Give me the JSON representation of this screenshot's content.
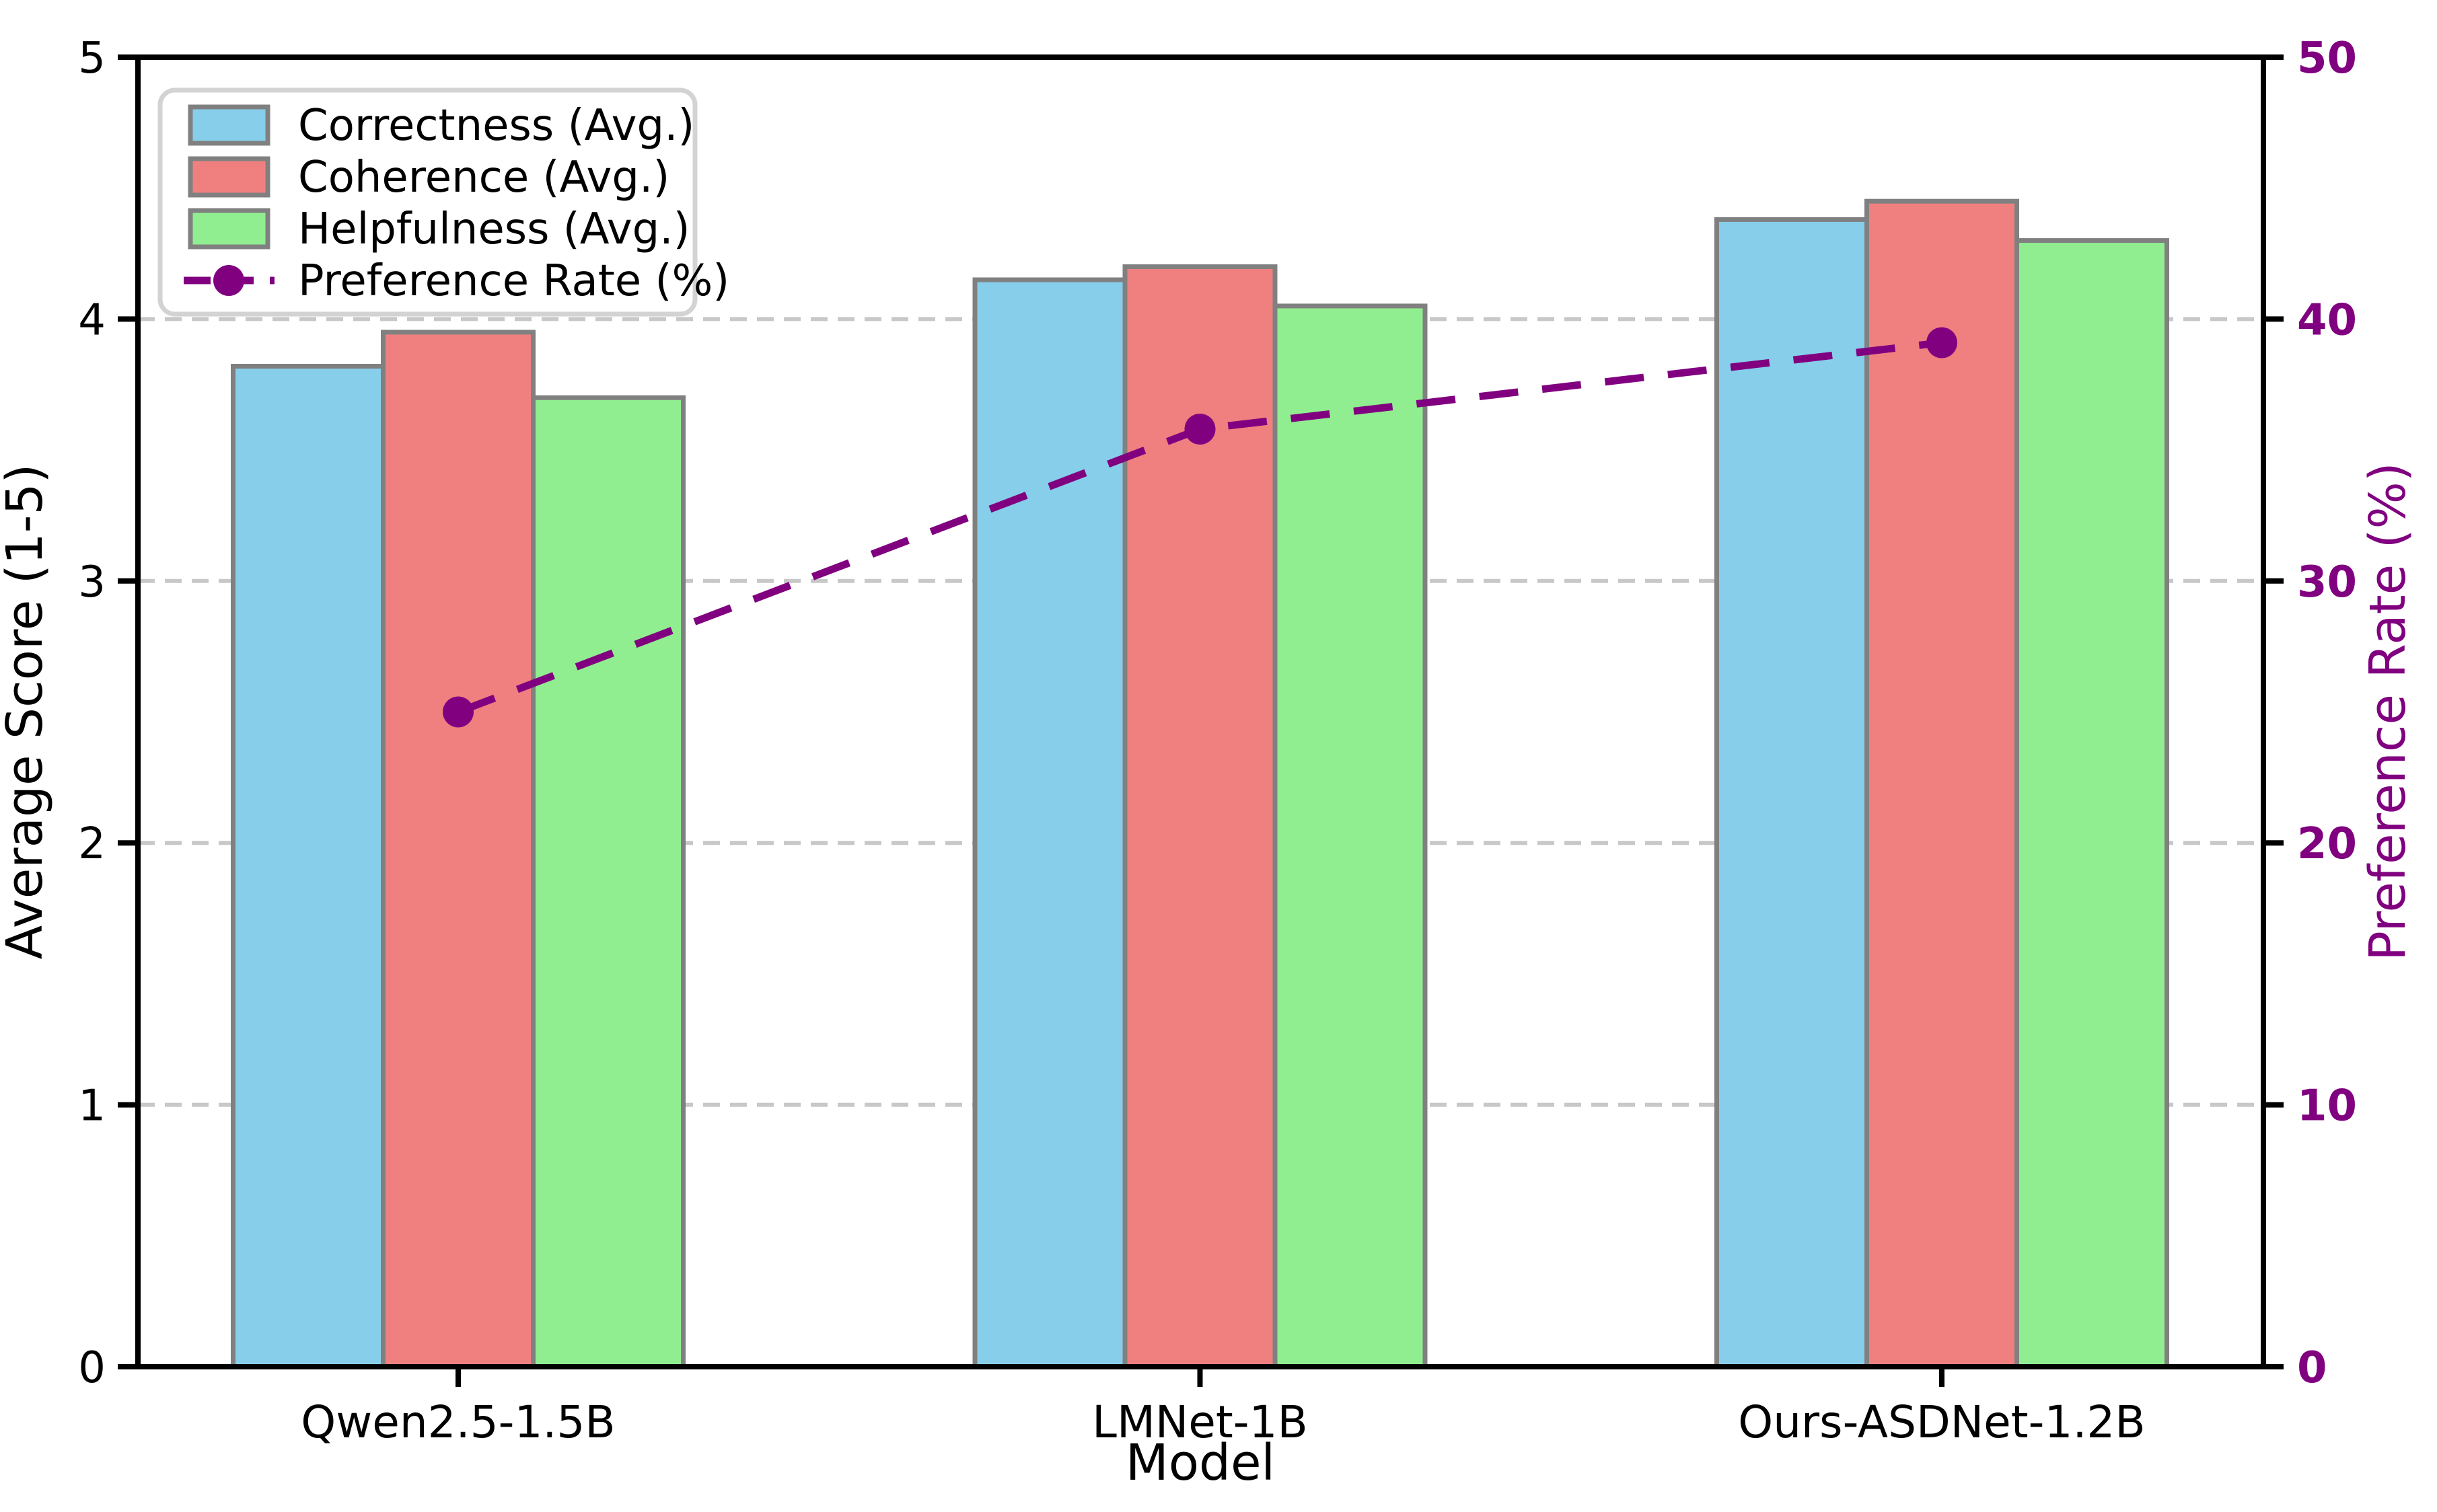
{
  "figure": {
    "background": "#ffffff",
    "xlabel": "Model",
    "ylabel_left": "Average Score (1-5)",
    "ylabel_right": "Preference Rate (%)"
  },
  "chart_data": {
    "type": "bar",
    "title": "",
    "categories": [
      "Qwen2.5-1.5B",
      "LMNet-1B",
      "Ours-ASDNet-1.2B"
    ],
    "series": [
      {
        "name": "Correctness (Avg.)",
        "kind": "bar",
        "axis": "left",
        "color": "#87CEEB",
        "values": [
          3.82,
          4.15,
          4.38
        ]
      },
      {
        "name": "Coherence (Avg.)",
        "kind": "bar",
        "axis": "left",
        "color": "#F08080",
        "values": [
          3.95,
          4.2,
          4.45
        ]
      },
      {
        "name": "Helpfulness (Avg.)",
        "kind": "bar",
        "axis": "left",
        "color": "#90EE90",
        "values": [
          3.7,
          4.05,
          4.3
        ]
      },
      {
        "name": "Preference Rate (%)",
        "kind": "line",
        "axis": "right",
        "color": "#800080",
        "values": [
          25.0,
          35.8,
          39.1
        ]
      }
    ],
    "xlabel": "Model",
    "ylabel_left": "Average Score (1-5)",
    "ylabel_right": "Preference Rate (%)",
    "ylim_left": [
      0,
      5
    ],
    "ylim_right": [
      0,
      50
    ],
    "yticks_left": [
      "0",
      "1",
      "2",
      "3",
      "4",
      "5"
    ],
    "yticks_right": [
      "0",
      "10",
      "20",
      "30",
      "40",
      "50"
    ],
    "grid": "horizontal dashed",
    "grid_color": "#c8c8c8",
    "bar_edge_color": "#808080",
    "axis_color": "#000000",
    "right_axis_label_color": "#800080",
    "legend_position": "upper-left",
    "legend_border_color": "#d3d3d3",
    "line_style": "dashed",
    "marker": "circle"
  }
}
